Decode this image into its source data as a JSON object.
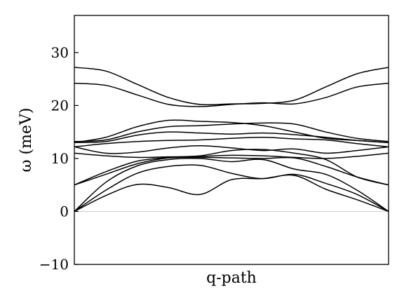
{
  "chart_data": {
    "type": "line",
    "title": "",
    "xlabel": "q-path",
    "ylabel": "ω (meV)",
    "ylim": [
      -10,
      37
    ],
    "xlim": [
      0,
      1
    ],
    "yticks": [
      -10,
      0,
      10,
      20,
      30
    ],
    "ytick_labels": [
      "−10",
      "0",
      "10",
      "20",
      "30"
    ],
    "x_tick_labels": [],
    "grid": false,
    "legend": "none",
    "zero_line": true,
    "line_color": "#000000",
    "x": [
      0,
      0.1,
      0.2,
      0.3,
      0.4,
      0.5,
      0.6,
      0.7,
      0.8,
      0.9,
      1.0
    ],
    "series": [
      {
        "values": [
          0,
          3.0,
          5.1,
          4.5,
          3.2,
          6.0,
          6.2,
          6.8,
          4.2,
          2.2,
          0
        ]
      },
      {
        "values": [
          0,
          4.0,
          7.2,
          8.5,
          8.7,
          7.2,
          6.2,
          7.0,
          5.3,
          3.2,
          0
        ]
      },
      {
        "values": [
          0,
          5.5,
          8.6,
          9.8,
          10.0,
          9.4,
          9.8,
          8.0,
          7.0,
          4.0,
          0
        ]
      },
      {
        "values": [
          5.0,
          7.0,
          9.0,
          10.1,
          10.2,
          10.1,
          10.0,
          10.1,
          8.5,
          6.5,
          5.0
        ]
      },
      {
        "values": [
          5.0,
          7.5,
          9.5,
          10.2,
          10.5,
          11.5,
          11.7,
          11.0,
          9.8,
          6.5,
          5.0
        ]
      },
      {
        "values": [
          11.0,
          10.5,
          10.2,
          10.3,
          10.4,
          10.6,
          10.5,
          10.2,
          10.0,
          10.4,
          11.0
        ]
      },
      {
        "values": [
          12.2,
          11.0,
          11.2,
          12.0,
          12.4,
          12.0,
          11.5,
          11.8,
          11.0,
          11.5,
          12.2
        ]
      },
      {
        "values": [
          12.2,
          12.8,
          13.2,
          13.4,
          13.5,
          13.8,
          14.0,
          13.7,
          13.5,
          12.8,
          12.2
        ]
      },
      {
        "values": [
          13.0,
          13.2,
          14.4,
          15.0,
          14.8,
          14.6,
          14.8,
          14.5,
          14.0,
          13.4,
          13.0
        ]
      },
      {
        "values": [
          13.2,
          13.5,
          15.0,
          16.0,
          16.2,
          16.5,
          16.7,
          16.5,
          15.0,
          13.8,
          13.2
        ]
      },
      {
        "values": [
          13.0,
          14.0,
          16.0,
          17.2,
          17.0,
          16.8,
          16.2,
          15.0,
          13.8,
          13.4,
          13.0
        ]
      },
      {
        "values": [
          24.2,
          23.8,
          22.0,
          20.2,
          19.8,
          20.2,
          20.5,
          20.3,
          21.5,
          23.5,
          24.2
        ]
      },
      {
        "values": [
          27.2,
          26.5,
          24.0,
          21.5,
          20.2,
          20.3,
          20.4,
          21.0,
          23.5,
          26.0,
          27.2
        ]
      }
    ]
  }
}
